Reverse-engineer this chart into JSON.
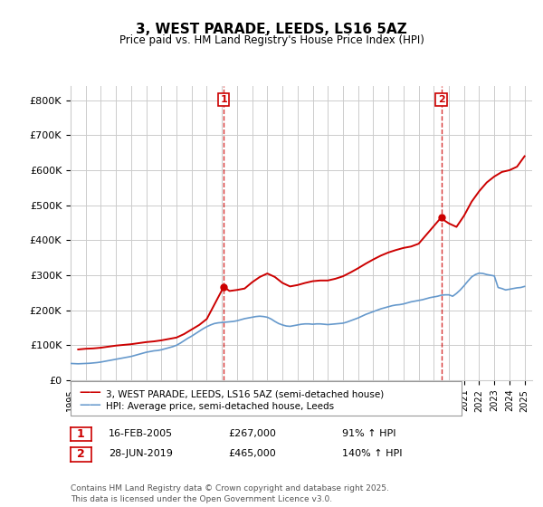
{
  "title": "3, WEST PARADE, LEEDS, LS16 5AZ",
  "subtitle": "Price paid vs. HM Land Registry's House Price Index (HPI)",
  "ylabel_ticks": [
    "£0",
    "£100K",
    "£200K",
    "£300K",
    "£400K",
    "£500K",
    "£600K",
    "£700K",
    "£800K"
  ],
  "ytick_values": [
    0,
    100000,
    200000,
    300000,
    400000,
    500000,
    600000,
    700000,
    800000
  ],
  "ylim": [
    0,
    840000
  ],
  "xlim_years": [
    1995,
    2025.5
  ],
  "xtick_years": [
    1995,
    1996,
    1997,
    1998,
    1999,
    2000,
    2001,
    2002,
    2003,
    2004,
    2005,
    2006,
    2007,
    2008,
    2009,
    2010,
    2011,
    2012,
    2013,
    2014,
    2015,
    2016,
    2017,
    2018,
    2019,
    2020,
    2021,
    2022,
    2023,
    2024,
    2025
  ],
  "red_color": "#cc0000",
  "blue_color": "#6699cc",
  "vline_color": "#cc0000",
  "grid_color": "#cccccc",
  "bg_color": "#ffffff",
  "transaction1_x": 2005.12,
  "transaction1_y": 267000,
  "transaction1_label": "1",
  "transaction2_x": 2019.49,
  "transaction2_y": 465000,
  "transaction2_label": "2",
  "legend_line1": "3, WEST PARADE, LEEDS, LS16 5AZ (semi-detached house)",
  "legend_line2": "HPI: Average price, semi-detached house, Leeds",
  "annot1_box": "1",
  "annot1_date": "16-FEB-2005",
  "annot1_price": "£267,000",
  "annot1_hpi": "91% ↑ HPI",
  "annot2_box": "2",
  "annot2_date": "28-JUN-2019",
  "annot2_price": "£465,000",
  "annot2_hpi": "140% ↑ HPI",
  "footnote": "Contains HM Land Registry data © Crown copyright and database right 2025.\nThis data is licensed under the Open Government Licence v3.0.",
  "hpi_data_x": [
    1995.0,
    1995.25,
    1995.5,
    1995.75,
    1996.0,
    1996.25,
    1996.5,
    1996.75,
    1997.0,
    1997.25,
    1997.5,
    1997.75,
    1998.0,
    1998.25,
    1998.5,
    1998.75,
    1999.0,
    1999.25,
    1999.5,
    1999.75,
    2000.0,
    2000.25,
    2000.5,
    2000.75,
    2001.0,
    2001.25,
    2001.5,
    2001.75,
    2002.0,
    2002.25,
    2002.5,
    2002.75,
    2003.0,
    2003.25,
    2003.5,
    2003.75,
    2004.0,
    2004.25,
    2004.5,
    2004.75,
    2005.0,
    2005.25,
    2005.5,
    2005.75,
    2006.0,
    2006.25,
    2006.5,
    2006.75,
    2007.0,
    2007.25,
    2007.5,
    2007.75,
    2008.0,
    2008.25,
    2008.5,
    2008.75,
    2009.0,
    2009.25,
    2009.5,
    2009.75,
    2010.0,
    2010.25,
    2010.5,
    2010.75,
    2011.0,
    2011.25,
    2011.5,
    2011.75,
    2012.0,
    2012.25,
    2012.5,
    2012.75,
    2013.0,
    2013.25,
    2013.5,
    2013.75,
    2014.0,
    2014.25,
    2014.5,
    2014.75,
    2015.0,
    2015.25,
    2015.5,
    2015.75,
    2016.0,
    2016.25,
    2016.5,
    2016.75,
    2017.0,
    2017.25,
    2017.5,
    2017.75,
    2018.0,
    2018.25,
    2018.5,
    2018.75,
    2019.0,
    2019.25,
    2019.5,
    2019.75,
    2020.0,
    2020.25,
    2020.5,
    2020.75,
    2021.0,
    2021.25,
    2021.5,
    2021.75,
    2022.0,
    2022.25,
    2022.5,
    2022.75,
    2023.0,
    2023.25,
    2023.5,
    2023.75,
    2024.0,
    2024.25,
    2024.5,
    2024.75,
    2025.0
  ],
  "hpi_data_y": [
    48000,
    47500,
    47000,
    47500,
    48000,
    48500,
    49500,
    50500,
    52000,
    54000,
    56000,
    58000,
    60000,
    62000,
    64000,
    66000,
    68000,
    71000,
    74000,
    77000,
    80000,
    82000,
    84000,
    85000,
    87000,
    90000,
    93000,
    96000,
    100000,
    106000,
    113000,
    120000,
    126000,
    133000,
    140000,
    147000,
    153000,
    158000,
    162000,
    164000,
    165000,
    166000,
    167000,
    168000,
    170000,
    173000,
    176000,
    178000,
    180000,
    182000,
    183000,
    182000,
    180000,
    175000,
    168000,
    162000,
    158000,
    155000,
    154000,
    156000,
    158000,
    160000,
    161000,
    161000,
    160000,
    161000,
    161000,
    160000,
    159000,
    160000,
    161000,
    162000,
    163000,
    166000,
    170000,
    174000,
    178000,
    183000,
    188000,
    192000,
    196000,
    200000,
    204000,
    207000,
    210000,
    213000,
    215000,
    216000,
    218000,
    221000,
    224000,
    226000,
    228000,
    230000,
    233000,
    236000,
    238000,
    240000,
    243000,
    244000,
    244000,
    240000,
    248000,
    258000,
    270000,
    283000,
    295000,
    302000,
    306000,
    305000,
    302000,
    300000,
    298000,
    265000,
    262000,
    258000,
    260000,
    262000,
    264000,
    265000,
    268000
  ],
  "red_data_x": [
    1995.5,
    1996.0,
    1996.5,
    1997.0,
    1997.5,
    1998.0,
    1998.5,
    1999.0,
    1999.5,
    2000.0,
    2000.5,
    2001.0,
    2001.5,
    2002.0,
    2002.5,
    2003.0,
    2003.5,
    2004.0,
    2005.12,
    2005.5,
    2006.0,
    2006.5,
    2007.0,
    2007.5,
    2007.75,
    2008.0,
    2008.5,
    2009.0,
    2009.5,
    2010.0,
    2010.5,
    2011.0,
    2011.5,
    2012.0,
    2012.5,
    2013.0,
    2013.5,
    2014.0,
    2014.5,
    2015.0,
    2015.5,
    2016.0,
    2016.5,
    2017.0,
    2017.5,
    2018.0,
    2019.49,
    2019.75,
    2020.0,
    2020.5,
    2021.0,
    2021.5,
    2022.0,
    2022.5,
    2023.0,
    2023.5,
    2024.0,
    2024.5,
    2025.0
  ],
  "red_data_y": [
    88000,
    90000,
    91000,
    93000,
    96000,
    99000,
    101000,
    103000,
    106000,
    109000,
    111000,
    114000,
    118000,
    122000,
    132000,
    145000,
    158000,
    175000,
    267000,
    255000,
    258000,
    262000,
    280000,
    295000,
    300000,
    305000,
    295000,
    278000,
    268000,
    272000,
    278000,
    283000,
    285000,
    285000,
    290000,
    297000,
    308000,
    320000,
    333000,
    345000,
    356000,
    365000,
    372000,
    378000,
    382000,
    390000,
    465000,
    455000,
    448000,
    438000,
    470000,
    510000,
    540000,
    565000,
    582000,
    595000,
    600000,
    610000,
    640000
  ]
}
